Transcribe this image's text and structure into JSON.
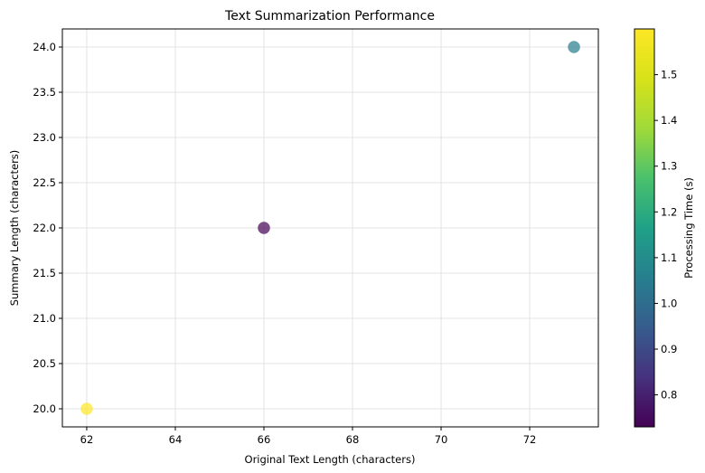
{
  "chart_data": {
    "type": "scatter",
    "title": "Text Summarization Performance",
    "xlabel": "Original Text Length (characters)",
    "ylabel": "Summary Length (characters)",
    "xlim": [
      61.45,
      73.55
    ],
    "ylim": [
      19.8,
      24.2
    ],
    "x_ticks": [
      62,
      64,
      66,
      68,
      70,
      72
    ],
    "y_ticks": [
      20.0,
      20.5,
      21.0,
      21.5,
      22.0,
      22.5,
      23.0,
      23.5,
      24.0
    ],
    "grid": true,
    "points": [
      {
        "x": 66,
        "y": 22.0,
        "processing_time": 0.73
      },
      {
        "x": 62,
        "y": 20.0,
        "processing_time": 1.6
      },
      {
        "x": 73,
        "y": 24.0,
        "processing_time": 1.05
      }
    ],
    "colorbar": {
      "label": "Processing Time (s)",
      "range": [
        0.73,
        1.6
      ],
      "ticks": [
        0.8,
        0.9,
        1.0,
        1.1,
        1.2,
        1.3,
        1.4,
        1.5
      ],
      "colormap": "viridis"
    },
    "marker_alpha": 0.7
  }
}
